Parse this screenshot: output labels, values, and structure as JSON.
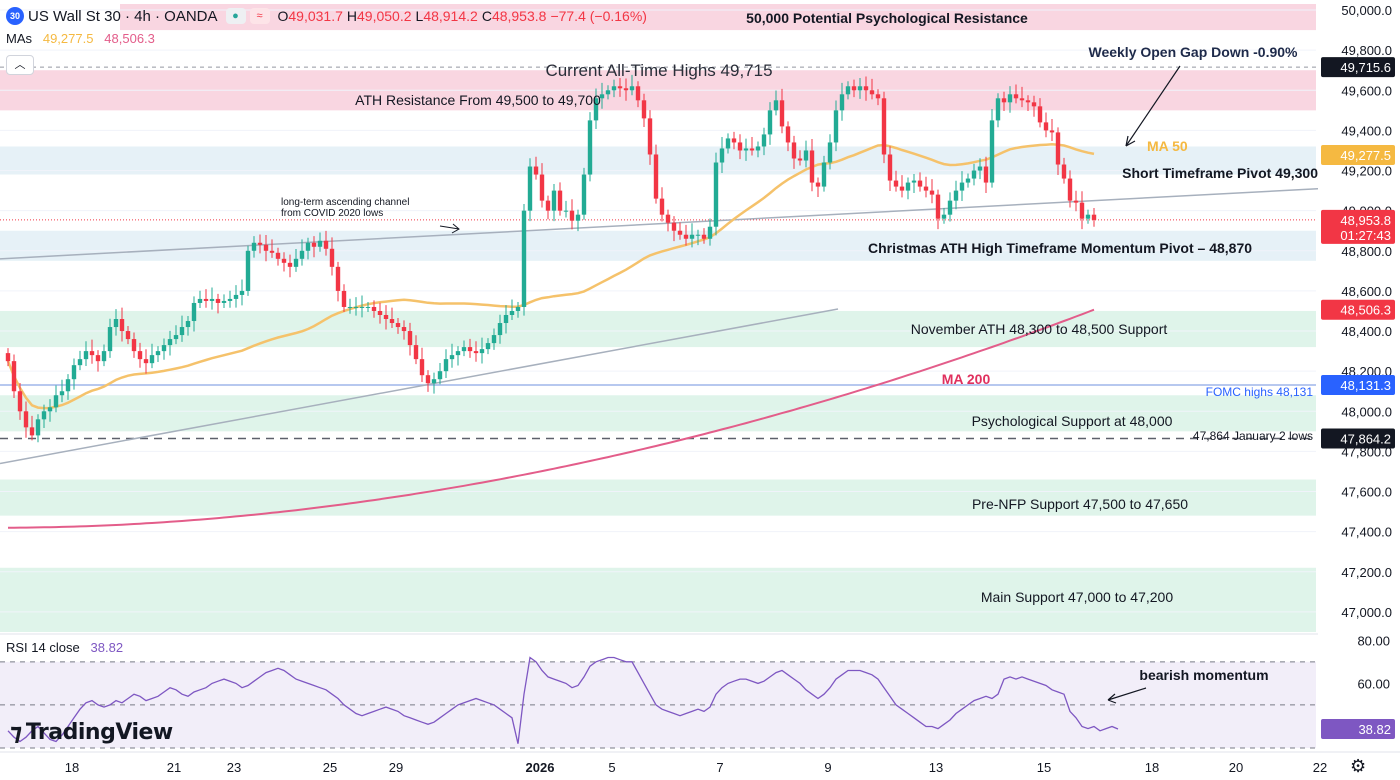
{
  "header": {
    "logo_text": "30",
    "title": "US Wall St 30 · 4h · OANDA",
    "ohlc": [
      {
        "k": "O",
        "v": "49,031.7"
      },
      {
        "k": "H",
        "v": "49,050.2"
      },
      {
        "k": "L",
        "v": "48,914.2"
      },
      {
        "k": "C",
        "v": "48,953.8"
      }
    ],
    "change": "−77.4 (−0.16%)",
    "mas_label": "MAs",
    "ma50_value": "49,277.5",
    "ma200_value": "48,506.3",
    "rsi_label": "RSI 14 close",
    "rsi_value": "38.82",
    "brand": "TradingView"
  },
  "colors": {
    "up": "#22ab94",
    "down": "#f23645",
    "ma50": "#f5c26b",
    "ma200": "#e35d8a",
    "rsi": "#7e57c2",
    "resistance_zone": "#f8d1de",
    "support_zone": "#dcf3e8",
    "pivot_zone": "#e2eff6",
    "blue_line": "#9fb6ea",
    "channel": "#a7b0bd"
  },
  "chart_data": [
    {
      "type": "candlestick",
      "title": "US Wall St 30 · 4h · OANDA",
      "ylim": [
        46900,
        50050
      ],
      "y_ticks": [
        "50,000.0",
        "49,800.0",
        "49,600.0",
        "49,400.0",
        "49,200.0",
        "49,000.0",
        "48,800.0",
        "48,600.0",
        "48,400.0",
        "48,200.0",
        "48,000.0",
        "47,800.0",
        "47,600.0",
        "47,400.0",
        "47,200.0",
        "47,000.0"
      ],
      "x_ticks": [
        "18",
        "21",
        "23",
        "25",
        "29",
        "2026",
        "5",
        "7",
        "9",
        "13",
        "15",
        "18",
        "20",
        "22"
      ],
      "x_tick_index": [
        6,
        23,
        33,
        49,
        60,
        84,
        96,
        114,
        132,
        150,
        168,
        186,
        200,
        214
      ],
      "closes": [
        48250,
        48100,
        48000,
        47920,
        47880,
        47960,
        48000,
        48020,
        48080,
        48100,
        48160,
        48230,
        48260,
        48300,
        48280,
        48250,
        48300,
        48420,
        48460,
        48400,
        48360,
        48300,
        48260,
        48240,
        48280,
        48300,
        48330,
        48360,
        48380,
        48420,
        48450,
        48540,
        48560,
        48550,
        48560,
        48540,
        48550,
        48560,
        48580,
        48600,
        48800,
        48840,
        48830,
        48800,
        48790,
        48760,
        48740,
        48720,
        48760,
        48800,
        48840,
        48820,
        48850,
        48810,
        48720,
        48600,
        48520,
        48520,
        48520,
        48520,
        48520,
        48500,
        48480,
        48460,
        48440,
        48420,
        48400,
        48330,
        48260,
        48180,
        48140,
        48160,
        48200,
        48260,
        48280,
        48300,
        48320,
        48300,
        48290,
        48310,
        48340,
        48380,
        48440,
        48480,
        48500,
        48520,
        49000,
        49220,
        49180,
        49050,
        49000,
        49100,
        49000,
        49000,
        48950,
        48980,
        49180,
        49450,
        49560,
        49580,
        49600,
        49620,
        49610,
        49600,
        49620,
        49550,
        49460,
        49280,
        49060,
        48980,
        48940,
        48900,
        48880,
        48860,
        48880,
        48880,
        48860,
        48920,
        49240,
        49310,
        49360,
        49340,
        49300,
        49310,
        49300,
        49320,
        49380,
        49500,
        49550,
        49420,
        49340,
        49260,
        49250,
        49300,
        49140,
        49120,
        49240,
        49340,
        49500,
        49580,
        49620,
        49600,
        49620,
        49600,
        49580,
        49560,
        49280,
        49150,
        49120,
        49100,
        49140,
        49150,
        49120,
        49100,
        49080,
        48960,
        48980,
        49050,
        49100,
        49140,
        49160,
        49200,
        49220,
        49140,
        49450,
        49560,
        49540,
        49580,
        49560,
        49550,
        49540,
        49520,
        49440,
        49400,
        49390,
        49230,
        49160,
        49050,
        49040,
        48960,
        48980,
        48953.8
      ],
      "ma50": {
        "name": "MA 50",
        "value": "49,277.5"
      },
      "ma200": {
        "name": "MA 200",
        "value": "48,506.3"
      },
      "price_labels": [
        {
          "value": "49,715.6",
          "at": 49715.6,
          "color": "#131722"
        },
        {
          "value": "49,277.5",
          "at": 49277.5,
          "color": "#f5b941"
        },
        {
          "value": "48,953.8",
          "sub": "01:27:43",
          "at": 48953.8,
          "color": "#f23645"
        },
        {
          "value": "48,506.3",
          "at": 48506.3,
          "color": "#f23645"
        },
        {
          "value": "48,131.3",
          "at": 48131.3,
          "color": "#2962ff"
        },
        {
          "value": "47,864.2",
          "at": 47864.2,
          "color": "#131722"
        }
      ],
      "zones": [
        {
          "label": "50,000 Potential Psychological Resistance",
          "from": 49900,
          "to": 50070,
          "kind": "resistance"
        },
        {
          "label": "ATH Resistance From 49,500 to 49,700",
          "from": 49500,
          "to": 49700,
          "kind": "resistance"
        },
        {
          "label": "Short Timeframe Pivot 49,300",
          "from": 49180,
          "to": 49320,
          "kind": "pivot"
        },
        {
          "label": "Christmas ATH High Timeframe Momentum Pivot – 48,870",
          "from": 48750,
          "to": 48900,
          "kind": "pivot"
        },
        {
          "label": "November ATH 48,300 to 48,500 Support",
          "from": 48320,
          "to": 48500,
          "kind": "support"
        },
        {
          "label": "Psychological Support at 48,000",
          "from": 47900,
          "to": 48080,
          "kind": "support"
        },
        {
          "label": "Pre-NFP Support 47,500 to 47,650",
          "from": 47480,
          "to": 47660,
          "kind": "support"
        },
        {
          "label": "Main Support 47,000 to 47,200",
          "from": 46900,
          "to": 47220,
          "kind": "support"
        }
      ],
      "annotations": [
        "Current All-Time Highs 49,715",
        "Weekly Open Gap Down -0.90%",
        "MA 50",
        "MA 200",
        "long-term ascending channel",
        "from COVID 2020 lows",
        "FOMC highs 48,131",
        "47,864 January 2 lows"
      ]
    },
    {
      "type": "line",
      "title": "RSI 14 close",
      "ylim": [
        30,
        82
      ],
      "y_ticks": [
        "80.00",
        "60.00"
      ],
      "levels": [
        70,
        50,
        30
      ],
      "value": "38.82",
      "annotation": "bearish momentum",
      "values": [
        38,
        35,
        33,
        35,
        38,
        40,
        37,
        34,
        33,
        36,
        40,
        44,
        48,
        51,
        52,
        50,
        49,
        50,
        52,
        51,
        53,
        55,
        54,
        52,
        53,
        54,
        56,
        58,
        57,
        55,
        54,
        56,
        57,
        58,
        60,
        61,
        62,
        61,
        60,
        58,
        59,
        61,
        63,
        65,
        66,
        67,
        66,
        64,
        62,
        61,
        60,
        59,
        58,
        57,
        55,
        53,
        50,
        48,
        46,
        45,
        46,
        47,
        48,
        49,
        48,
        47,
        45,
        44,
        43,
        42,
        41,
        42,
        44,
        46,
        48,
        50,
        51,
        52,
        53,
        52,
        51,
        50,
        48,
        46,
        44,
        32,
        55,
        72,
        70,
        66,
        63,
        62,
        61,
        60,
        58,
        59,
        63,
        68,
        70,
        71,
        72,
        72,
        71,
        70,
        70,
        65,
        60,
        55,
        50,
        48,
        47,
        46,
        45,
        46,
        47,
        48,
        47,
        49,
        55,
        58,
        60,
        61,
        62,
        62,
        61,
        60,
        61,
        63,
        65,
        66,
        64,
        62,
        60,
        57,
        55,
        53,
        55,
        58,
        62,
        64,
        66,
        66,
        66,
        65,
        64,
        62,
        58,
        54,
        50,
        48,
        46,
        44,
        42,
        40,
        40,
        39,
        41,
        43,
        46,
        48,
        50,
        52,
        53,
        54,
        53,
        55,
        62,
        63,
        62,
        63,
        62,
        61,
        60,
        59,
        57,
        56,
        55,
        47,
        44,
        40,
        39,
        40,
        38,
        39,
        40,
        38.82
      ]
    }
  ]
}
